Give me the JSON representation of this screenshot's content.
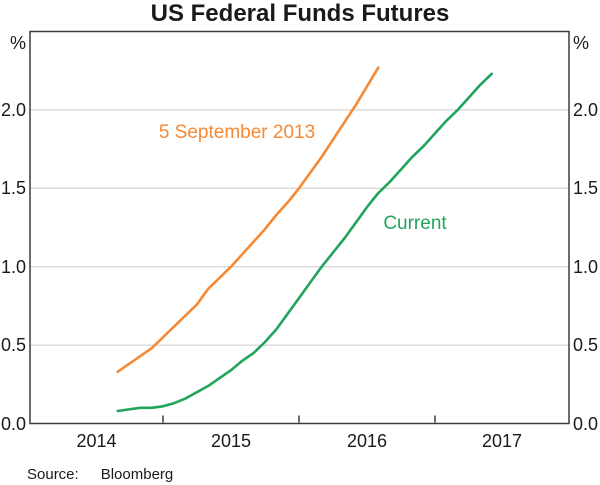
{
  "title": "US Federal Funds Futures",
  "source": {
    "label": "Source:",
    "value": "Bloomberg"
  },
  "chart_data": {
    "type": "line",
    "title": "US Federal Funds Futures",
    "y_unit": "%",
    "ylim": [
      0,
      2.5
    ],
    "yticks": [
      0.0,
      0.5,
      1.0,
      1.5,
      2.0
    ],
    "ytick_labels": [
      "0.0",
      "0.5",
      "1.0",
      "1.5",
      "2.0"
    ],
    "grid": true,
    "gridline_color": "#cbcbcb",
    "frame_color": "#3c3c3c",
    "x_year_ticks": [
      2015,
      2016,
      2017
    ],
    "xtick_labels": [
      "2014",
      "2015",
      "2016",
      "2017"
    ],
    "xlim_years": [
      2014.02,
      2017.99
    ],
    "x_step_years": 0.08333,
    "series": [
      {
        "name": "5 September 2013",
        "color": "#F68933",
        "x_start_year": 2014.6667,
        "start_month": "Sep 2014",
        "end_month": "Aug 2016",
        "monthly_values": [
          0.33,
          0.38,
          0.43,
          0.48,
          0.55,
          0.62,
          0.69,
          0.76,
          0.86,
          0.93,
          1.0,
          1.08,
          1.16,
          1.24,
          1.33,
          1.41,
          1.5,
          1.6,
          1.7,
          1.81,
          1.92,
          2.03,
          2.15,
          2.27
        ]
      },
      {
        "name": "Current",
        "color": "#22A45C",
        "x_start_year": 2014.6667,
        "start_month": "Sep 2014",
        "end_month": "Jun 2017",
        "monthly_values": [
          0.08,
          0.09,
          0.1,
          0.1,
          0.11,
          0.13,
          0.16,
          0.2,
          0.24,
          0.29,
          0.34,
          0.4,
          0.45,
          0.52,
          0.6,
          0.7,
          0.8,
          0.9,
          1.0,
          1.09,
          1.18,
          1.28,
          1.38,
          1.47,
          1.54,
          1.62,
          1.7,
          1.77,
          1.85,
          1.93,
          2.0,
          2.08,
          2.16,
          2.23
        ]
      }
    ],
    "annotations": [
      {
        "text": "5 September 2013"
      },
      {
        "text": "Current"
      }
    ],
    "legend_position": "inline-labels"
  }
}
